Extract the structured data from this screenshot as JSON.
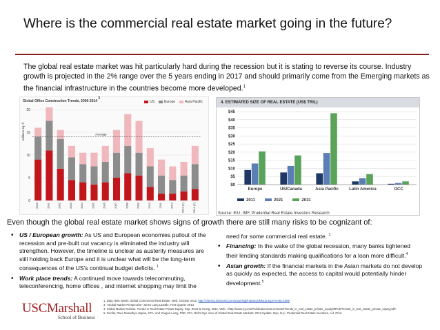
{
  "slide": {
    "title": "Where is the commercial real estate market going in the future?",
    "intro": "The global real estate market was hit particularly hard during the recession but it is stating to reverse its course. Industry growth is projected in the 2% range over the 5 years ending in 2017 and should primarily come from the Emerging markets as the financial infrastructure in the countries become more developed.",
    "intro_ref": "1",
    "risk_heading": "Even though the global real estate market shows signs of growth there are still many risks to be cognizant of:"
  },
  "colors": {
    "accent": "#8b1b1b",
    "us": "#c0161c",
    "europe": "#8c8c8c",
    "asia": "#f0b8bc",
    "s2011": "#1f3864",
    "s2021": "#5b7fb5",
    "s2031": "#5aa35a"
  },
  "chart_data": [
    {
      "type": "bar",
      "title": "Global Office Construction Trends, 2000-2014",
      "ref_mark": "3",
      "ylabel": "millions sq. ft",
      "categories": [
        "2000",
        "2001",
        "2002",
        "2003",
        "2004",
        "2005",
        "2006",
        "2007",
        "2008",
        "2009",
        "2010",
        "2011",
        "2012",
        "2013 (F)",
        "2014 (F)"
      ],
      "series": [
        {
          "name": "US",
          "values": [
            9,
            11,
            7,
            4.5,
            4,
            3.5,
            4,
            5,
            6,
            5.5,
            3,
            1.5,
            1.5,
            2,
            2.5
          ]
        },
        {
          "name": "Europe",
          "values": [
            5,
            6.5,
            6.5,
            5,
            4,
            4,
            4.5,
            5.5,
            6,
            5,
            4.5,
            4,
            3,
            3.5,
            5.5
          ]
        },
        {
          "name": "Asia Pacific",
          "values": [
            2,
            3,
            2,
            2.5,
            2.5,
            3,
            3.5,
            5,
            7,
            7,
            4,
            3.5,
            3,
            3,
            4
          ]
        }
      ],
      "average_label": "Average",
      "average_value": 14,
      "ylim": [
        0,
        20
      ],
      "yticks": [
        "0",
        "5",
        "10",
        "15",
        "20"
      ],
      "legend_position": "top-right"
    },
    {
      "type": "bar",
      "title": "4. ESTIMATED SIZE OF REAL ESTATE (US$ TRIL)",
      "categories": [
        "Europe",
        "US/Canada",
        "Asia Pacific",
        "Latin America",
        "GCC"
      ],
      "series": [
        {
          "name": "2011",
          "values": [
            9,
            7.5,
            7,
            2,
            0.5
          ]
        },
        {
          "name": "2021",
          "values": [
            13,
            11.5,
            19.5,
            4,
            1
          ]
        },
        {
          "name": "2031",
          "values": [
            20.5,
            18,
            44,
            6.5,
            2
          ]
        }
      ],
      "yticks": [
        "$0",
        "$5",
        "$10",
        "$15",
        "$20",
        "$25",
        "$30",
        "$35",
        "$40",
        "$45"
      ],
      "ylim": [
        0,
        45
      ],
      "grid": true,
      "legend_position": "bottom",
      "source": "Source: EIU, IMF, Prudential Real Estate Investors Research"
    }
  ],
  "bullets_left": [
    {
      "head": "US / European growth:",
      "text": " As US and European economies pullout of the recession and pre-built out vacancy is eliminated the industry will strengthen.  However, the timeline is unclear as austerity measures are still holding back Europe  and it is unclear what will be the long-term consequences of the US's continual budget deficits.",
      "ref": "1"
    },
    {
      "head": "Work place trends:",
      "text": " A continued move towards telecommuting, teleconferencing, home offices , and internet shopping may limit the",
      "ref": ""
    }
  ],
  "bullets_right": [
    {
      "head": "",
      "text": "need for some commercial real estate.",
      "ref": "1",
      "continuation": true
    },
    {
      "head": "Financing:",
      "text": " In the wake of the global recession, many banks tightened their lending standards making qualifications for a loan more difficult.",
      "ref": "4"
    },
    {
      "head": "Asian growth:",
      "text": " If the financial markets in the Asian markets do not develop as quickly as expected, the access to capital would potentially hinder development.",
      "ref": "5"
    }
  ],
  "logo": {
    "main": "USCMarshall",
    "sub": "School of Business"
  },
  "references": [
    {
      "text": "1. Data: IBIS World, Global Commercial Real Estate. Web. October 2012. ",
      "link": "http://clients1.ibisworld.com/reports/gl/industry/default.aspx?entid=1866"
    },
    {
      "text": "3. \"Global Market Perspective\" Jones Lang LaSalle, First Quarter 2013",
      "link": ""
    },
    {
      "text": "4. Global Market Outlook, Trends in Real Estate Private Equity. Rep. Ernst & Young, 2012. Web. <http://www.ey.com/Publication/vwLUAssets/Trends_in_real_estate_private_equity/$FILE/Trends_in_real_estate_private_equity.pdf>",
      "link": ""
    },
    {
      "text": "5. Fiorilla, Paul, Maradhya Hapan, CFA, and Youguo Liang, PhD, CFA. Bird's Eye View of Global Real Estate Markets: 2012 Update. Rep. N.p.: Prudential Real Estate Investors, n.d. Print.",
      "link": ""
    }
  ]
}
